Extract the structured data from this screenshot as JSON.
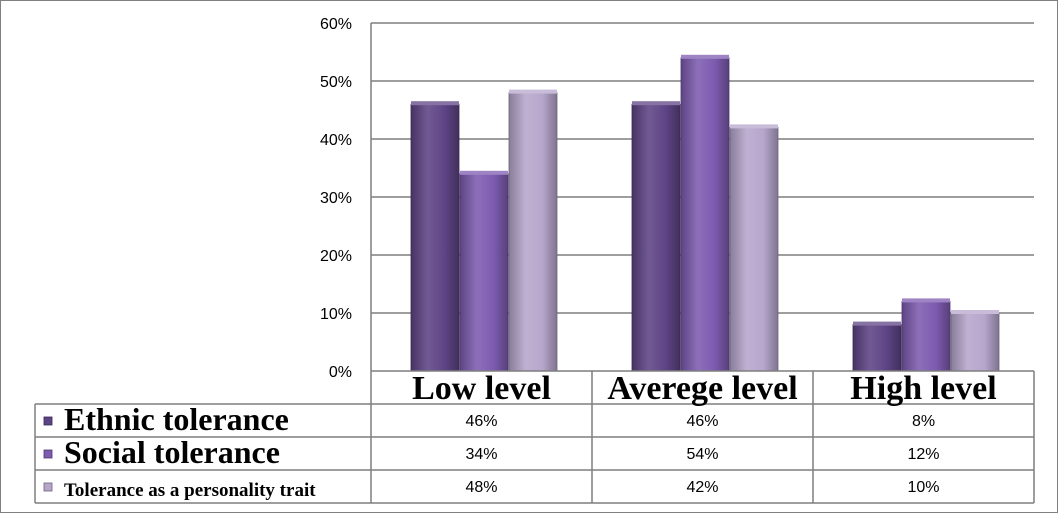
{
  "chart_data": {
    "type": "bar",
    "categories": [
      "Low level",
      "Averege level",
      "High level"
    ],
    "series": [
      {
        "name": "Ethnic tolerance",
        "values": [
          46,
          46,
          8
        ],
        "color": "#5E4485",
        "labels": [
          "46%",
          "46%",
          "8%"
        ]
      },
      {
        "name": "Social tolerance",
        "values": [
          34,
          54,
          12
        ],
        "color": "#7D5BB0",
        "labels": [
          "34%",
          "54%",
          "12%"
        ]
      },
      {
        "name": "Tolerance as a personality trait",
        "values": [
          48,
          42,
          10
        ],
        "color": "#B6A6CC",
        "labels": [
          "48%",
          "42%",
          "10%"
        ]
      }
    ],
    "ylim": [
      0,
      60
    ],
    "yticks": [
      "0%",
      "10%",
      "20%",
      "30%",
      "40%",
      "50%",
      "60%"
    ],
    "ytick_values": [
      0,
      10,
      20,
      30,
      40,
      50,
      60
    ],
    "grid": true,
    "legend": "data table",
    "title": "",
    "xlabel": "",
    "ylabel": ""
  }
}
